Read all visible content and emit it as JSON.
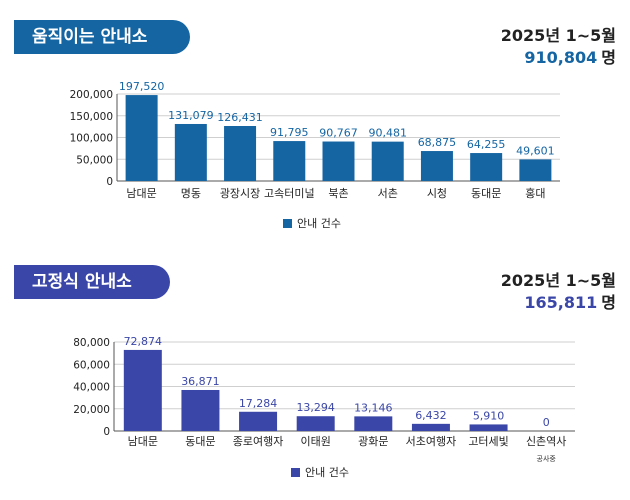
{
  "chart_data": [
    {
      "type": "bar",
      "title": "움직이는 안내소",
      "period": "2025년 1~5월",
      "total": "910,804",
      "total_unit": "명",
      "categories": [
        "남대문",
        "명동",
        "광장시장",
        "고속터미널",
        "북촌",
        "서촌",
        "시청",
        "동대문",
        "홍대"
      ],
      "series": [
        {
          "name": "안내 건수",
          "values": [
            197520,
            131079,
            126431,
            91795,
            90767,
            90481,
            68875,
            64255,
            49601
          ]
        }
      ],
      "labels": [
        "197,520",
        "131,079",
        "126,431",
        "91,795",
        "90,767",
        "90,481",
        "68,875",
        "64,255",
        "49,601"
      ],
      "ylim": [
        0,
        200000
      ],
      "yticks": [
        "0",
        "50,000",
        "100,000",
        "150,000",
        "200,000"
      ],
      "grid": true,
      "color": "#1565a3",
      "legend_position": "bottom"
    },
    {
      "type": "bar",
      "title": "고정식 안내소",
      "period": "2025년 1~5월",
      "total": "165,811",
      "total_unit": "명",
      "categories": [
        "남대문",
        "동대문",
        "종로여행자",
        "이태원",
        "광화문",
        "서초여행자",
        "고터세빛",
        "신촌역사"
      ],
      "sub_labels": [
        "",
        "",
        "",
        "",
        "",
        "",
        "",
        "공사중"
      ],
      "series": [
        {
          "name": "안내 건수",
          "values": [
            72874,
            36871,
            17284,
            13294,
            13146,
            6432,
            5910,
            0
          ]
        }
      ],
      "labels": [
        "72,874",
        "36,871",
        "17,284",
        "13,294",
        "13,146",
        "6,432",
        "5,910",
        "0"
      ],
      "ylim": [
        0,
        80000
      ],
      "yticks": [
        "0",
        "20,000",
        "40,000",
        "60,000",
        "80,000"
      ],
      "grid": true,
      "color": "#3b47a8",
      "legend_position": "bottom"
    }
  ]
}
